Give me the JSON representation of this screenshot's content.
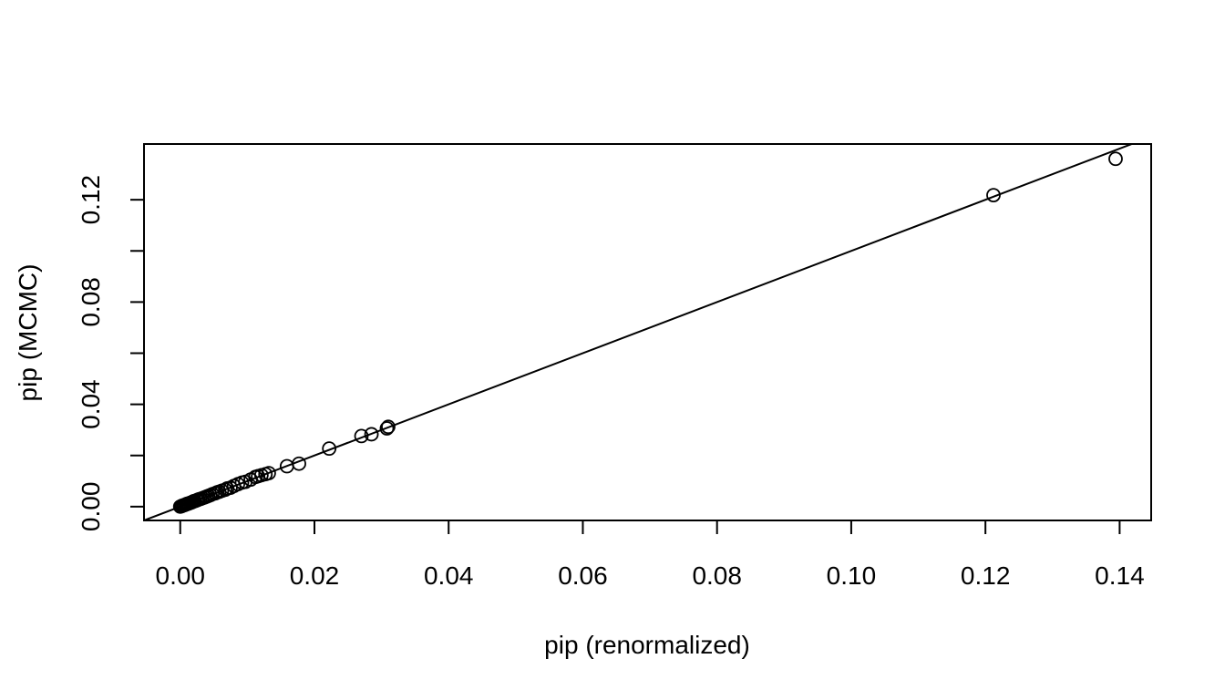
{
  "chart_data": {
    "type": "scatter",
    "title": "",
    "xlabel": "pip (renormalized)",
    "ylabel": "pip (MCMC)",
    "xlim": [
      -0.0054,
      0.1447
    ],
    "ylim": [
      -0.0054,
      0.1418
    ],
    "xticks": [
      0.0,
      0.02,
      0.04,
      0.06,
      0.08,
      0.1,
      0.12,
      0.14
    ],
    "xtick_labels": [
      "0.00",
      "0.02",
      "0.04",
      "0.06",
      "0.08",
      "0.10",
      "0.12",
      "0.14"
    ],
    "yticks": [
      0.0,
      0.02,
      0.04,
      0.06,
      0.08,
      0.1,
      0.12
    ],
    "ytick_labels": [
      "0.00",
      "",
      "0.04",
      "",
      "0.08",
      "",
      "0.12"
    ],
    "grid": false,
    "reference_line": {
      "intercept": 0,
      "slope": 1
    },
    "points": [
      [
        0.0,
        0.0
      ],
      [
        0.0002,
        0.0002
      ],
      [
        0.0003,
        0.0004
      ],
      [
        0.0005,
        0.0005
      ],
      [
        0.0007,
        0.0007
      ],
      [
        0.0009,
        0.0009
      ],
      [
        0.001,
        0.0011
      ],
      [
        0.0012,
        0.0012
      ],
      [
        0.0014,
        0.0014
      ],
      [
        0.0016,
        0.0016
      ],
      [
        0.0018,
        0.0018
      ],
      [
        0.002,
        0.0021
      ],
      [
        0.0022,
        0.0022
      ],
      [
        0.0025,
        0.0025
      ],
      [
        0.0027,
        0.0028
      ],
      [
        0.003,
        0.003
      ],
      [
        0.0033,
        0.0033
      ],
      [
        0.0036,
        0.0036
      ],
      [
        0.0039,
        0.0039
      ],
      [
        0.0042,
        0.0042
      ],
      [
        0.0045,
        0.0045
      ],
      [
        0.0048,
        0.0049
      ],
      [
        0.0052,
        0.0052
      ],
      [
        0.0055,
        0.0056
      ],
      [
        0.0058,
        0.0058
      ],
      [
        0.0062,
        0.0062
      ],
      [
        0.0067,
        0.0066
      ],
      [
        0.007,
        0.0071
      ],
      [
        0.0075,
        0.0074
      ],
      [
        0.008,
        0.0081
      ],
      [
        0.0086,
        0.0088
      ],
      [
        0.0092,
        0.0094
      ],
      [
        0.0097,
        0.0097
      ],
      [
        0.0105,
        0.0106
      ],
      [
        0.0112,
        0.0116
      ],
      [
        0.0116,
        0.0119
      ],
      [
        0.0121,
        0.0123
      ],
      [
        0.0127,
        0.0127
      ],
      [
        0.0132,
        0.0131
      ],
      [
        0.0159,
        0.0158
      ],
      [
        0.0177,
        0.0168
      ],
      [
        0.0222,
        0.0227
      ],
      [
        0.027,
        0.0276
      ],
      [
        0.0285,
        0.0283
      ],
      [
        0.0308,
        0.0306
      ],
      [
        0.031,
        0.0312
      ],
      [
        0.1212,
        0.1218
      ],
      [
        0.1394,
        0.136
      ]
    ]
  }
}
